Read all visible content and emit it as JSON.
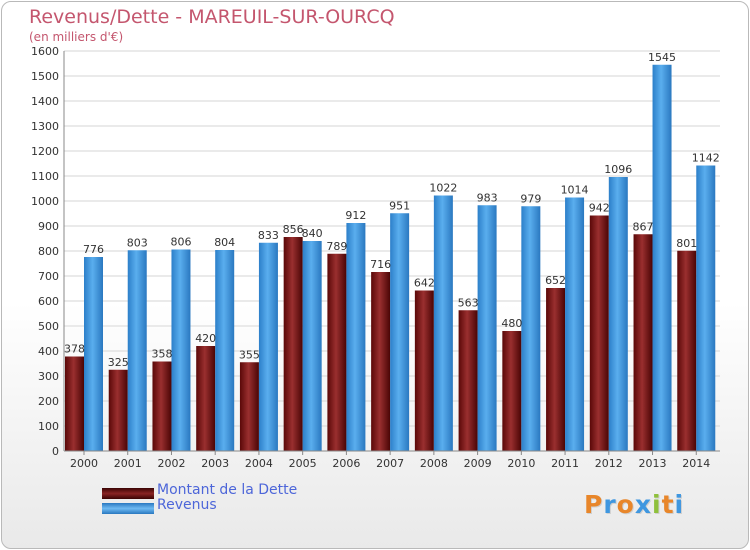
{
  "header": {
    "title": "Revenus/Dette - MAREUIL-SUR-OURCQ",
    "subtitle": "(en milliers d'€)"
  },
  "chart_data": {
    "type": "bar",
    "categories": [
      "2000",
      "2001",
      "2002",
      "2003",
      "2004",
      "2005",
      "2006",
      "2007",
      "2008",
      "2009",
      "2010",
      "2011",
      "2012",
      "2013",
      "2014"
    ],
    "series": [
      {
        "name": "Montant de la Dette",
        "color": "#7b1a1a",
        "values": [
          378,
          325,
          358,
          420,
          355,
          856,
          789,
          716,
          642,
          563,
          480,
          652,
          942,
          867,
          801
        ]
      },
      {
        "name": "Revenus",
        "color": "#3f97e0",
        "values": [
          776,
          803,
          806,
          804,
          833,
          840,
          912,
          951,
          1022,
          983,
          979,
          1014,
          1096,
          1545,
          1142
        ]
      }
    ],
    "ylim": [
      0,
      1600
    ],
    "yticks": [
      0,
      100,
      200,
      300,
      400,
      500,
      600,
      700,
      800,
      900,
      1000,
      1100,
      1200,
      1300,
      1400,
      1500,
      1600
    ],
    "grid": true,
    "legend": "bottom-left"
  },
  "logo": {
    "letters": [
      "P",
      "r",
      "o",
      "x",
      "i",
      "t",
      "i"
    ],
    "colors": [
      "#e8862a",
      "#3f97e0",
      "#e8862a",
      "#3f97e0",
      "#8fc03c",
      "#e8862a",
      "#3f97e0"
    ]
  }
}
